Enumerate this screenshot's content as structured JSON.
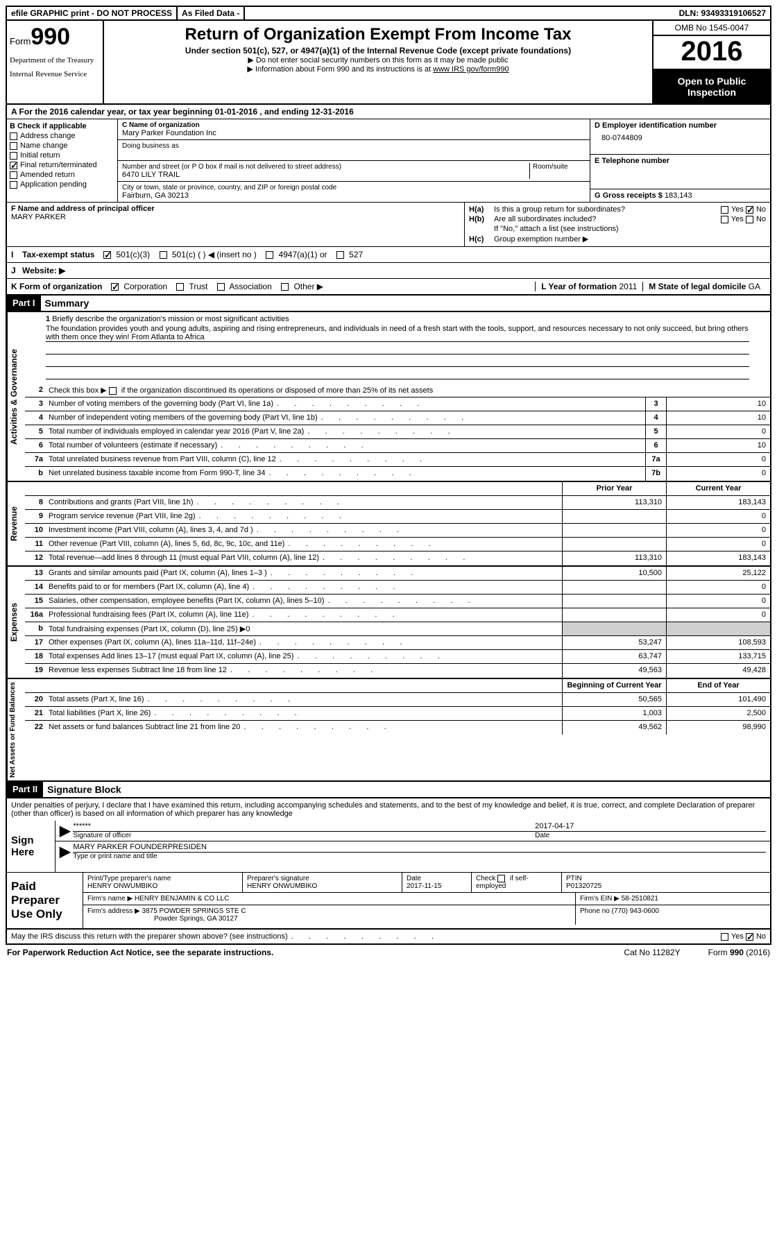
{
  "topbar": {
    "efile": "efile GRAPHIC print - DO NOT PROCESS",
    "asfiled": "As Filed Data -",
    "dln": "DLN: 93493319106527"
  },
  "header": {
    "form_word": "Form",
    "form_num": "990",
    "dept1": "Department of the Treasury",
    "dept2": "Internal Revenue Service",
    "title": "Return of Organization Exempt From Income Tax",
    "subtitle": "Under section 501(c), 527, or 4947(a)(1) of the Internal Revenue Code (except private foundations)",
    "note1": "Do not enter social security numbers on this form as it may be made public",
    "note2_pre": "Information about Form 990 and its instructions is at ",
    "note2_link": "www IRS gov/form990",
    "omb": "OMB No  1545-0047",
    "year": "2016",
    "open1": "Open to Public",
    "open2": "Inspection"
  },
  "sectionA": "A   For the 2016 calendar year, or tax year beginning 01-01-2016    , and ending 12-31-2016",
  "B": {
    "head": "B Check if applicable",
    "items": [
      "Address change",
      "Name change",
      "Initial return",
      "Final return/terminated",
      "Amended return",
      "Application pending"
    ],
    "checked": [
      false,
      false,
      false,
      true,
      false,
      false
    ]
  },
  "C": {
    "label": "C Name of organization",
    "name": "Mary Parker Foundation Inc",
    "dba_label": "Doing business as",
    "street_label": "Number and street (or P O  box if mail is not delivered to street address)",
    "room_label": "Room/suite",
    "street": "6470 LILY TRAIL",
    "city_label": "City or town, state or province, country, and ZIP or foreign postal code",
    "city": "Fairburn, GA  30213"
  },
  "D": {
    "label": "D Employer identification number",
    "val": "80-0744809"
  },
  "E": {
    "label": "E Telephone number"
  },
  "G": {
    "label": "G Gross receipts $",
    "val": "183,143"
  },
  "F": {
    "label": "F  Name and address of principal officer",
    "val": "MARY PARKER"
  },
  "H": {
    "a": "Is this a group return for subordinates?",
    "b": "Are all subordinates included?",
    "note": "If \"No,\" attach a list  (see instructions)",
    "c": "Group exemption number ▶",
    "yes": "Yes",
    "no": "No"
  },
  "I": {
    "label": "Tax-exempt status",
    "opts": [
      "501(c)(3)",
      "501(c) (   ) ◀ (insert no )",
      "4947(a)(1) or",
      "527"
    ],
    "checked": [
      true,
      false,
      false,
      false
    ]
  },
  "J": {
    "label": "Website: ▶"
  },
  "K": {
    "label": "K Form of organization",
    "opts": [
      "Corporation",
      "Trust",
      "Association",
      "Other ▶"
    ],
    "checked": [
      true,
      false,
      false,
      false
    ]
  },
  "L": {
    "label": "L Year of formation",
    "val": "2011"
  },
  "M": {
    "label": "M State of legal domicile",
    "val": "GA"
  },
  "parts": {
    "p1": "Part I",
    "p1t": "Summary",
    "p2": "Part II",
    "p2t": "Signature Block"
  },
  "mission": {
    "num": "1",
    "label": "Briefly describe the organization's mission or most significant activities",
    "text": "The foundation provides youth and young adults, aspiring and rising entrepreneurs, and individuals in need of a fresh start with the tools, support, and resources necessary to not only succeed, but bring others with them once they win! From Atlanta to Africa"
  },
  "line2": "Check this box ▶         if the organization discontinued its operations or disposed of more than 25% of its net assets",
  "vtabs": {
    "gov": "Activities & Governance",
    "rev": "Revenue",
    "exp": "Expenses",
    "net": "Net Assets or Fund Balances"
  },
  "gov": [
    {
      "n": "3",
      "d": "Number of voting members of the governing body (Part VI, line 1a)",
      "b": "3",
      "v": "10"
    },
    {
      "n": "4",
      "d": "Number of independent voting members of the governing body (Part VI, line 1b)",
      "b": "4",
      "v": "10"
    },
    {
      "n": "5",
      "d": "Total number of individuals employed in calendar year 2016 (Part V, line 2a)",
      "b": "5",
      "v": "0"
    },
    {
      "n": "6",
      "d": "Total number of volunteers (estimate if necessary)",
      "b": "6",
      "v": "10"
    },
    {
      "n": "7a",
      "d": "Total unrelated business revenue from Part VIII, column (C), line 12",
      "b": "7a",
      "v": "0"
    },
    {
      "n": "b",
      "d": "Net unrelated business taxable income from Form 990-T, line 34",
      "b": "7b",
      "v": "0"
    }
  ],
  "colhead": {
    "prior": "Prior Year",
    "current": "Current Year",
    "beg": "Beginning of Current Year",
    "end": "End of Year"
  },
  "rev": [
    {
      "n": "8",
      "d": "Contributions and grants (Part VIII, line 1h)",
      "p": "113,310",
      "c": "183,143"
    },
    {
      "n": "9",
      "d": "Program service revenue (Part VIII, line 2g)",
      "p": "",
      "c": "0"
    },
    {
      "n": "10",
      "d": "Investment income (Part VIII, column (A), lines 3, 4, and 7d )",
      "p": "",
      "c": "0"
    },
    {
      "n": "11",
      "d": "Other revenue (Part VIII, column (A), lines 5, 6d, 8c, 9c, 10c, and 11e)",
      "p": "",
      "c": "0"
    },
    {
      "n": "12",
      "d": "Total revenue—add lines 8 through 11 (must equal Part VIII, column (A), line 12)",
      "p": "113,310",
      "c": "183,143"
    }
  ],
  "exp": [
    {
      "n": "13",
      "d": "Grants and similar amounts paid (Part IX, column (A), lines 1–3 )",
      "p": "10,500",
      "c": "25,122"
    },
    {
      "n": "14",
      "d": "Benefits paid to or for members (Part IX, column (A), line 4)",
      "p": "",
      "c": "0"
    },
    {
      "n": "15",
      "d": "Salaries, other compensation, employee benefits (Part IX, column (A), lines 5–10)",
      "p": "",
      "c": "0"
    },
    {
      "n": "16a",
      "d": "Professional fundraising fees (Part IX, column (A), line 11e)",
      "p": "",
      "c": "0"
    },
    {
      "n": "b",
      "d": "Total fundraising expenses (Part IX, column (D), line 25) ▶0",
      "p": "gray",
      "c": "gray"
    },
    {
      "n": "17",
      "d": "Other expenses (Part IX, column (A), lines 11a–11d, 11f–24e)",
      "p": "53,247",
      "c": "108,593"
    },
    {
      "n": "18",
      "d": "Total expenses  Add lines 13–17 (must equal Part IX, column (A), line 25)",
      "p": "63,747",
      "c": "133,715"
    },
    {
      "n": "19",
      "d": "Revenue less expenses  Subtract line 18 from line 12",
      "p": "49,563",
      "c": "49,428"
    }
  ],
  "net": [
    {
      "n": "20",
      "d": "Total assets (Part X, line 16)",
      "p": "50,565",
      "c": "101,490"
    },
    {
      "n": "21",
      "d": "Total liabilities (Part X, line 26)",
      "p": "1,003",
      "c": "2,500"
    },
    {
      "n": "22",
      "d": "Net assets or fund balances  Subtract line 21 from line 20",
      "p": "49,562",
      "c": "98,990"
    }
  ],
  "perjury": "Under penalties of perjury, I declare that I have examined this return, including accompanying schedules and statements, and to the best of my knowledge and belief, it is true, correct, and complete  Declaration of preparer (other than officer) is based on all information of which preparer has any knowledge",
  "sign": {
    "label": "Sign Here",
    "stars": "******",
    "sig_cap": "Signature of officer",
    "date": "2017-04-17",
    "date_cap": "Date",
    "name": "MARY PARKER  FOUNDERPRESIDEN",
    "name_cap": "Type or print name and title"
  },
  "prep": {
    "label": "Paid Preparer Use Only",
    "h_name": "Print/Type preparer's name",
    "name": "HENRY ONWUMBIKO",
    "h_sig": "Preparer's signature",
    "sig": "HENRY ONWUMBIKO",
    "h_date": "Date",
    "date": "2017-11-15",
    "h_check": "Check        if self-employed",
    "h_ptin": "PTIN",
    "ptin": "P01320725",
    "firm_lbl": "Firm's name     ▶",
    "firm": "HENRY BENJAMIN & CO LLC",
    "ein_lbl": "Firm's EIN ▶",
    "ein": "58-2510821",
    "addr_lbl": "Firm's address ▶",
    "addr1": "3875 POWDER SPRINGS STE C",
    "addr2": "Powder Springs, GA  30127",
    "phone_lbl": "Phone no",
    "phone": "(770) 943-0600"
  },
  "discuss": "May the IRS discuss this return with the preparer shown above? (see instructions)",
  "footer": {
    "l": "For Paperwork Reduction Act Notice, see the separate instructions.",
    "m": "Cat No 11282Y",
    "r": "Form 990 (2016)"
  }
}
